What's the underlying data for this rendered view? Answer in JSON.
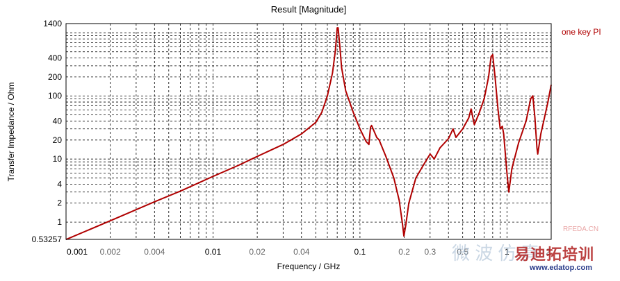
{
  "chart_data": {
    "type": "line",
    "title": "Result [Magnitude]",
    "xlabel": "Frequency / GHz",
    "ylabel": "Transfer Impedance / Ohm",
    "xscale": "log",
    "yscale": "log",
    "xlim": [
      0.001,
      2
    ],
    "ylim": [
      0.53257,
      1400
    ],
    "grid": true,
    "legend": "top-right",
    "x_ticks": [
      {
        "value": 0.001,
        "label": "0.001",
        "major": true
      },
      {
        "value": 0.002,
        "label": "0.002",
        "major": false
      },
      {
        "value": 0.004,
        "label": "0.004",
        "major": false
      },
      {
        "value": 0.01,
        "label": "0.01",
        "major": true
      },
      {
        "value": 0.02,
        "label": "0.02",
        "major": false
      },
      {
        "value": 0.04,
        "label": "0.04",
        "major": false
      },
      {
        "value": 0.1,
        "label": "0.1",
        "major": true
      },
      {
        "value": 0.2,
        "label": "0.2",
        "major": false
      },
      {
        "value": 0.3,
        "label": "0.3",
        "major": false
      },
      {
        "value": 0.5,
        "label": "0.5",
        "major": false
      },
      {
        "value": 1,
        "label": "1",
        "major": true
      },
      {
        "value": 2,
        "label": "2",
        "major": false
      }
    ],
    "y_ticks": [
      {
        "value": 0.53257,
        "label": "0.53257"
      },
      {
        "value": 1,
        "label": "1"
      },
      {
        "value": 2,
        "label": "2"
      },
      {
        "value": 4,
        "label": "4"
      },
      {
        "value": 10,
        "label": "10"
      },
      {
        "value": 20,
        "label": "20"
      },
      {
        "value": 40,
        "label": "40"
      },
      {
        "value": 100,
        "label": "100"
      },
      {
        "value": 200,
        "label": "200"
      },
      {
        "value": 400,
        "label": "400"
      },
      {
        "value": 1400,
        "label": "1400"
      }
    ],
    "series": [
      {
        "name": "one key PI",
        "color": "#b00000",
        "points": [
          [
            0.001,
            0.53
          ],
          [
            0.002,
            1.05
          ],
          [
            0.004,
            2.1
          ],
          [
            0.006,
            3.1
          ],
          [
            0.01,
            5.3
          ],
          [
            0.015,
            8.0
          ],
          [
            0.02,
            11
          ],
          [
            0.03,
            17
          ],
          [
            0.04,
            25
          ],
          [
            0.05,
            38
          ],
          [
            0.055,
            55
          ],
          [
            0.06,
            100
          ],
          [
            0.065,
            230
          ],
          [
            0.068,
            520
          ],
          [
            0.07,
            1200
          ],
          [
            0.071,
            1200
          ],
          [
            0.073,
            600
          ],
          [
            0.075,
            280
          ],
          [
            0.08,
            120
          ],
          [
            0.09,
            55
          ],
          [
            0.1,
            30
          ],
          [
            0.11,
            19
          ],
          [
            0.115,
            17
          ],
          [
            0.118,
            32
          ],
          [
            0.12,
            34
          ],
          [
            0.13,
            22
          ],
          [
            0.135,
            20
          ],
          [
            0.15,
            11
          ],
          [
            0.17,
            5
          ],
          [
            0.185,
            2.2
          ],
          [
            0.195,
            0.9
          ],
          [
            0.199,
            0.6
          ],
          [
            0.205,
            0.9
          ],
          [
            0.215,
            2.0
          ],
          [
            0.24,
            5
          ],
          [
            0.27,
            8
          ],
          [
            0.3,
            12
          ],
          [
            0.32,
            10
          ],
          [
            0.35,
            15
          ],
          [
            0.4,
            21
          ],
          [
            0.43,
            30
          ],
          [
            0.45,
            22
          ],
          [
            0.5,
            30
          ],
          [
            0.55,
            45
          ],
          [
            0.57,
            62
          ],
          [
            0.6,
            35
          ],
          [
            0.65,
            55
          ],
          [
            0.7,
            90
          ],
          [
            0.75,
            200
          ],
          [
            0.78,
            420
          ],
          [
            0.8,
            450
          ],
          [
            0.83,
            200
          ],
          [
            0.87,
            60
          ],
          [
            0.9,
            30
          ],
          [
            0.93,
            33
          ],
          [
            0.95,
            25
          ],
          [
            1.0,
            6
          ],
          [
            1.03,
            3.0
          ],
          [
            1.08,
            7
          ],
          [
            1.2,
            18
          ],
          [
            1.35,
            40
          ],
          [
            1.45,
            90
          ],
          [
            1.5,
            100
          ],
          [
            1.55,
            45
          ],
          [
            1.6,
            15
          ],
          [
            1.62,
            12
          ],
          [
            1.7,
            25
          ],
          [
            1.8,
            45
          ],
          [
            1.9,
            80
          ],
          [
            2.0,
            150
          ]
        ]
      }
    ]
  },
  "watermarks": {
    "brand": "易迪拓培训",
    "url": "www.edatop.com",
    "rf": "RFEDA.CN",
    "cn": "微 波 仿 真"
  }
}
